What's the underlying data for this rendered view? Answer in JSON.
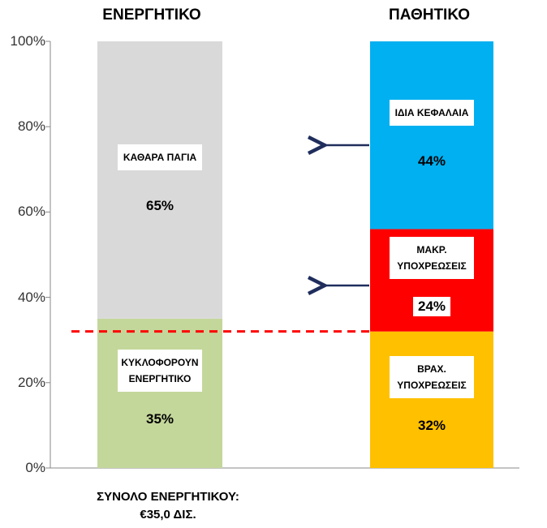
{
  "chart_data": {
    "type": "stacked_bar",
    "categories": [
      "ΕΝΕΡΓΗΤΙΚΟ",
      "ΠΑΘΗΤΙΚΟ"
    ],
    "series": [
      {
        "name": "ΚΥΚΛΟΦΟΡΟΥΝ ΕΝΕΡΓΗΤΙΚΟ",
        "color": "#c4d79b",
        "values": [
          35,
          null
        ],
        "value_labels": [
          "35%",
          null
        ]
      },
      {
        "name": "ΚΑΘΑΡΑ ΠΑΓΙΑ",
        "color": "#d9d9d9",
        "values": [
          65,
          null
        ],
        "value_labels": [
          "65%",
          null
        ]
      },
      {
        "name": "ΒΡΑΧ. ΥΠΟΧΡΕΩΣΕΙΣ",
        "color": "#ffc000",
        "values": [
          null,
          32
        ],
        "value_labels": [
          null,
          "32%"
        ]
      },
      {
        "name": "ΜΑΚΡ. ΥΠΟΧΡΕΩΣΕΙΣ",
        "color": "#ff0000",
        "values": [
          null,
          24
        ],
        "value_labels": [
          null,
          "24%"
        ]
      },
      {
        "name": "ΙΔΙΑ ΚΕΦΑΛΑΙΑ",
        "color": "#00b0f0",
        "values": [
          null,
          44
        ],
        "value_labels": [
          null,
          "44%"
        ]
      }
    ],
    "ylim": [
      0,
      100
    ],
    "yticks": [
      {
        "value": 0,
        "label": "0%"
      },
      {
        "value": 20,
        "label": "20%"
      },
      {
        "value": 40,
        "label": "40%"
      },
      {
        "value": 60,
        "label": "60%"
      },
      {
        "value": 80,
        "label": "80%"
      },
      {
        "value": 100,
        "label": "100%"
      }
    ],
    "reference_line": {
      "value": 32,
      "color": "#ff0000"
    },
    "footnote": [
      "ΣΥΝΟΛΟ ΕΝΕΡΓΗΤΙΚΟΥ:",
      "€35,0 ΔΙΣ."
    ]
  }
}
